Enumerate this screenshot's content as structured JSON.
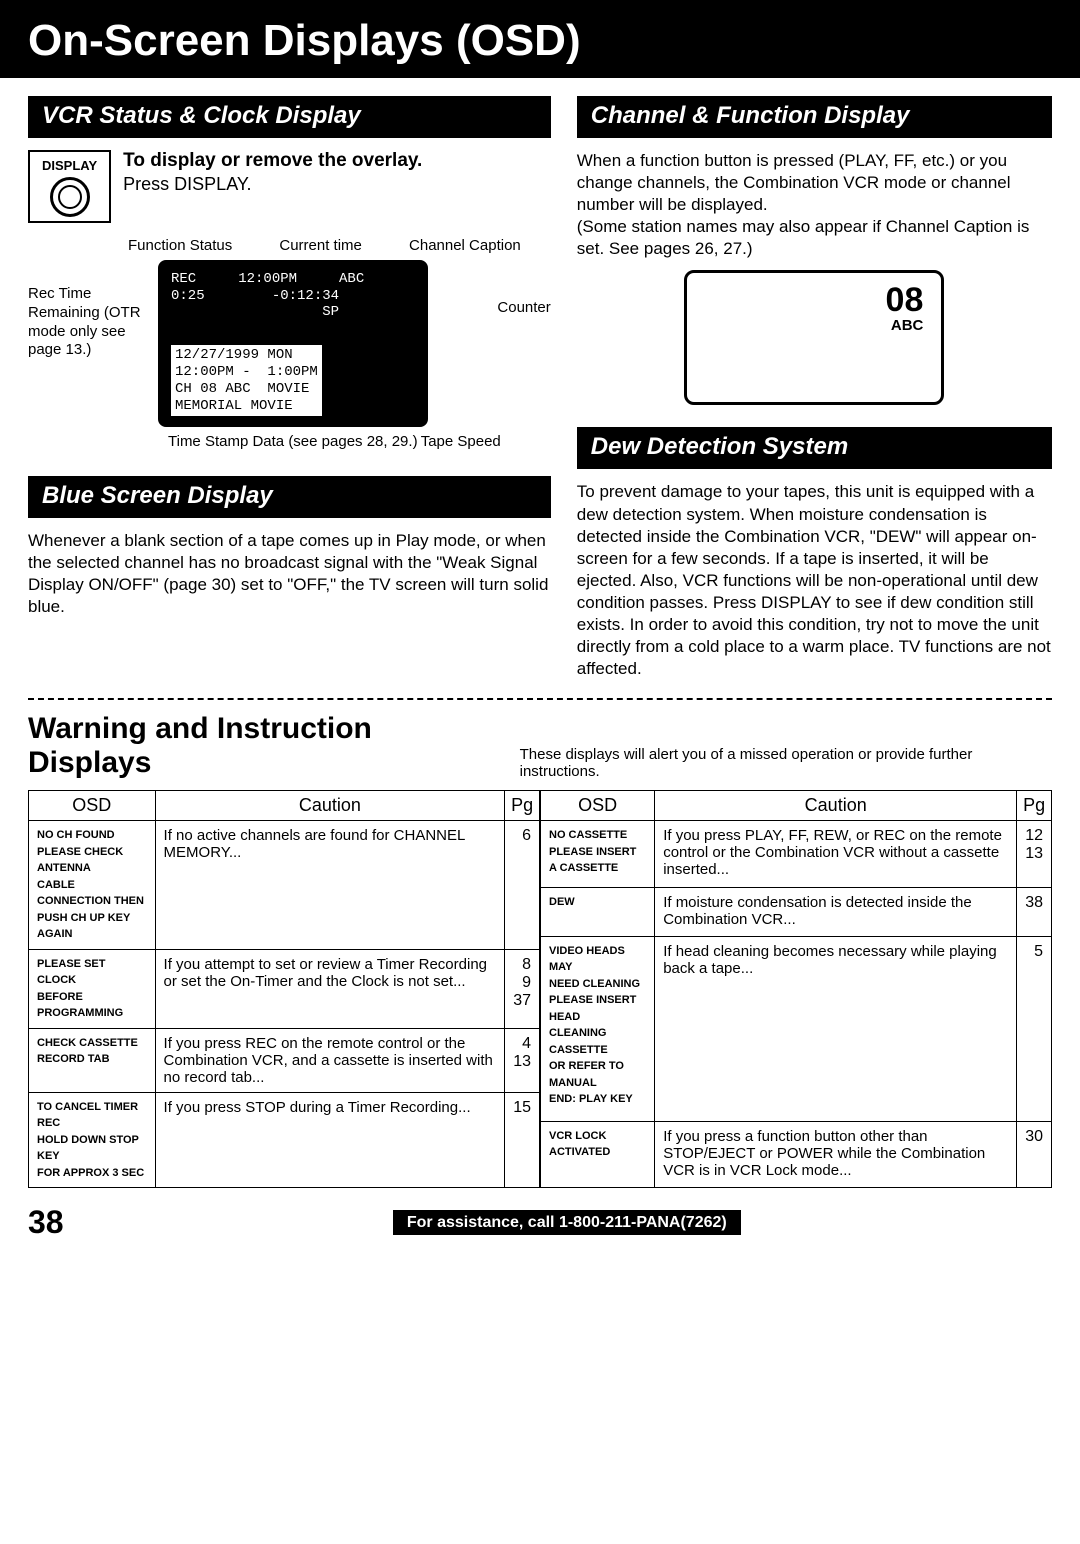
{
  "page": {
    "title": "On-Screen Displays (OSD)",
    "number": "38",
    "assistance": "For assistance, call 1-800-211-PANA(7262)"
  },
  "vcr_status": {
    "heading": "VCR Status & Clock Display",
    "button_label": "DISPLAY",
    "instruction_bold": "To display or remove the overlay.",
    "instruction_text": "Press DISPLAY.",
    "labels": {
      "function_status": "Function Status",
      "current_time": "Current time",
      "channel_caption": "Channel Caption",
      "rec_time": "Rec Time Remaining (OTR mode only see page 13.)",
      "counter": "Counter",
      "time_stamp": "Time Stamp Data (see pages 28, 29.)",
      "tape_speed": "Tape Speed"
    },
    "osd_top": "REC     12:00PM     ABC\n0:25        -0:12:34\n                  SP",
    "osd_bottom": "12/27/1999 MON\n12:00PM -  1:00PM\nCH 08 ABC  MOVIE\nMEMORIAL MOVIE"
  },
  "blue_screen": {
    "heading": "Blue Screen Display",
    "text": "Whenever a blank section of a tape comes up in Play mode, or when the selected channel has no broadcast signal with the \"Weak Signal Display ON/OFF\" (page 30) set to \"OFF,\" the TV screen will turn solid blue."
  },
  "channel_func": {
    "heading": "Channel & Function Display",
    "text": "When a function button is pressed (PLAY, FF, etc.) or you change channels, the Combination VCR mode or channel number will be displayed.\n(Some station names may also appear if Channel Caption is set. See pages 26, 27.)",
    "ch_num": "08",
    "ch_name": "ABC"
  },
  "dew": {
    "heading": "Dew Detection System",
    "text": "To prevent damage to your tapes, this unit is equipped with a dew detection system. When moisture condensation is detected inside the Combination VCR, \"DEW\" will appear on-screen for a few seconds. If a tape is inserted, it will be ejected. Also, VCR functions will be non-operational until dew condition passes. Press DISPLAY to see if dew condition still exists. In order to avoid this condition, try not to move the unit directly from a cold place to a warm place. TV functions are not affected."
  },
  "warning": {
    "title": "Warning and Instruction Displays",
    "sub": "These displays will alert you of a missed operation or provide further instructions.",
    "headers": {
      "osd": "OSD",
      "caution": "Caution",
      "pg": "Pg"
    },
    "left": [
      {
        "osd": "NO CH FOUND\nPLEASE CHECK ANTENNA\nCABLE CONNECTION THEN\nPUSH CH UP KEY AGAIN",
        "caution": "If no active channels are found for CHANNEL MEMORY...",
        "pg": "6"
      },
      {
        "osd": "PLEASE SET CLOCK\nBEFORE PROGRAMMING",
        "caution": "If you attempt to set or review a Timer Recording or set the On-Timer and the Clock is not set...",
        "pg": "8\n9\n37"
      },
      {
        "osd": "CHECK CASSETTE\nRECORD TAB",
        "caution": "If you press REC on the remote control or the Combination VCR, and a cassette is inserted with no record tab...",
        "pg": "4\n13"
      },
      {
        "osd": "TO CANCEL TIMER REC\nHOLD DOWN STOP KEY\nFOR APPROX  3 SEC",
        "caution": "If you press STOP during a Timer Recording...",
        "pg": "15"
      }
    ],
    "right": [
      {
        "osd": "NO CASSETTE\nPLEASE INSERT A CASSETTE",
        "caution": "If you press PLAY, FF, REW, or REC on the remote control or the Combination VCR without a cassette inserted...",
        "pg": "12\n13"
      },
      {
        "osd": "DEW",
        "caution": "If moisture condensation is detected inside the Combination VCR...",
        "pg": "38"
      },
      {
        "osd": "VIDEO HEADS MAY\nNEED CLEANING\nPLEASE INSERT HEAD\nCLEANING CASSETTE\nOR REFER TO MANUAL\nEND: PLAY KEY",
        "caution": "If head cleaning becomes necessary while playing back a tape...",
        "pg": "5"
      },
      {
        "osd": "VCR LOCK ACTIVATED",
        "caution": "If you press a function button other than STOP/EJECT or POWER while the Combination VCR is in VCR Lock mode...",
        "pg": "30"
      }
    ]
  }
}
